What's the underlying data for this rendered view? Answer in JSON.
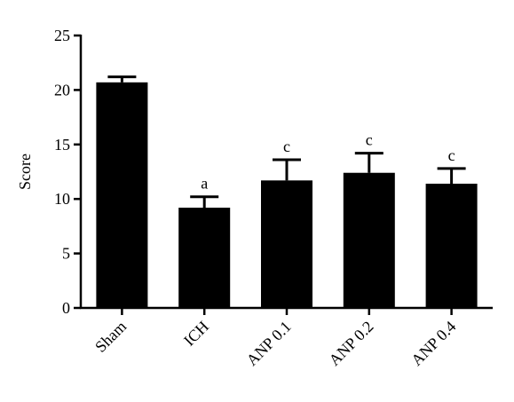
{
  "chart_data": {
    "type": "bar",
    "categories": [
      "Sham",
      "ICH",
      "ANP 0.1",
      "ANP 0.2",
      "ANP 0.4"
    ],
    "values": [
      20.7,
      9.2,
      11.7,
      12.4,
      11.4
    ],
    "errors": [
      0.5,
      1.0,
      1.9,
      1.8,
      1.4
    ],
    "annotations": [
      "",
      "a",
      "c",
      "c",
      "c"
    ],
    "title": "",
    "xlabel": "",
    "ylabel": "Score",
    "ylim": [
      0,
      25
    ],
    "yticks": [
      0,
      5,
      10,
      15,
      20,
      25
    ],
    "grid": false,
    "legend": "none",
    "bar_color": "#000000"
  }
}
